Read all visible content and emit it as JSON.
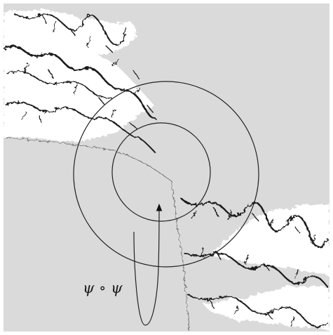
{
  "figure": {
    "label": "ψ ∘ ψ",
    "colors": {
      "background": "#dadada",
      "fractal_ink": "#1c1c1c",
      "fractal_gap": "#ffffff",
      "frame": "#cfcfcf",
      "stroke": "#222222"
    }
  }
}
